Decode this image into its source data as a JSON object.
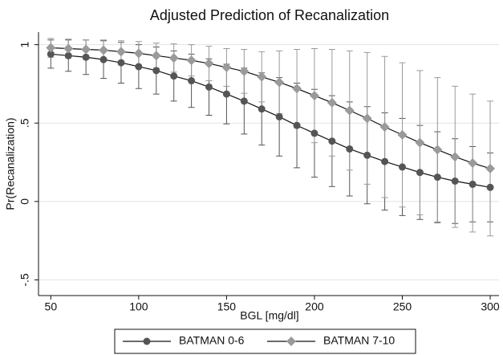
{
  "chart_data": {
    "type": "line_errorbar",
    "title": "Adjusted Prediction of Recanalization",
    "xlabel": "BGL [mg/dl]",
    "ylabel": "Pr(Recanalization)",
    "x": [
      50,
      60,
      70,
      80,
      90,
      100,
      110,
      120,
      130,
      140,
      150,
      160,
      170,
      180,
      190,
      200,
      210,
      220,
      230,
      240,
      250,
      260,
      270,
      280,
      290,
      300
    ],
    "series": [
      {
        "name": "BATMAN 0-6",
        "color": "#555555",
        "marker": "circle",
        "values": [
          0.94,
          0.93,
          0.92,
          0.905,
          0.885,
          0.86,
          0.835,
          0.8,
          0.77,
          0.73,
          0.685,
          0.64,
          0.59,
          0.54,
          0.485,
          0.435,
          0.385,
          0.335,
          0.295,
          0.255,
          0.22,
          0.185,
          0.155,
          0.13,
          0.11,
          0.09
        ],
        "errors": [
          0.09,
          0.1,
          0.11,
          0.12,
          0.13,
          0.14,
          0.15,
          0.16,
          0.17,
          0.18,
          0.19,
          0.21,
          0.23,
          0.25,
          0.27,
          0.28,
          0.29,
          0.3,
          0.31,
          0.31,
          0.31,
          0.3,
          0.29,
          0.27,
          0.24,
          0.22
        ]
      },
      {
        "name": "BATMAN 7-10",
        "color": "#9a9a9a",
        "marker": "diamond",
        "values": [
          0.98,
          0.975,
          0.97,
          0.965,
          0.955,
          0.945,
          0.93,
          0.915,
          0.9,
          0.88,
          0.855,
          0.83,
          0.795,
          0.76,
          0.72,
          0.675,
          0.63,
          0.58,
          0.53,
          0.475,
          0.425,
          0.375,
          0.33,
          0.285,
          0.245,
          0.21
        ],
        "errors": [
          0.06,
          0.06,
          0.06,
          0.065,
          0.07,
          0.075,
          0.08,
          0.09,
          0.1,
          0.11,
          0.12,
          0.14,
          0.16,
          0.2,
          0.25,
          0.3,
          0.34,
          0.38,
          0.42,
          0.45,
          0.46,
          0.46,
          0.46,
          0.45,
          0.44,
          0.43
        ]
      }
    ],
    "xlim": [
      43,
      305
    ],
    "xticks": [
      50,
      100,
      150,
      200,
      250,
      300
    ],
    "ylim": [
      -0.6,
      1.08
    ],
    "yticks": [
      {
        "value": -0.5,
        "label": "-.5"
      },
      0,
      {
        "value": 0.5,
        "label": ".5"
      },
      1
    ],
    "grid": true,
    "legend": "bottom"
  }
}
